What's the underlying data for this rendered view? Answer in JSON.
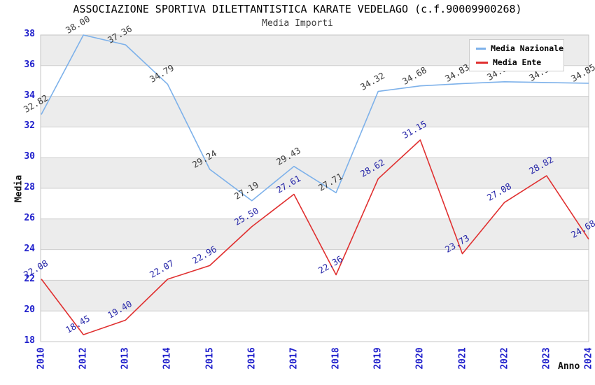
{
  "chart_data": {
    "type": "line",
    "title": "ASSOCIAZIONE SPORTIVA DILETTANTISTICA KARATE VEDELAGO (c.f.90009900268)",
    "subtitle": "Media Importi",
    "xlabel": "Anno",
    "ylabel": "Media",
    "categories": [
      "2010",
      "2012",
      "2013",
      "2014",
      "2015",
      "2016",
      "2017",
      "2018",
      "2019",
      "2020",
      "2021",
      "2022",
      "2023",
      "2024"
    ],
    "series": [
      {
        "name": "Media Nazionale",
        "color": "#7db1ea",
        "label_color": "#3a3a3a",
        "values": [
          32.82,
          38.0,
          37.36,
          34.79,
          29.24,
          27.19,
          29.43,
          27.71,
          34.32,
          34.68,
          34.83,
          34.95,
          34.9,
          34.85
        ]
      },
      {
        "name": "Media Ente",
        "color": "#e03030",
        "label_color": "#2525a8",
        "values": [
          22.08,
          18.45,
          19.4,
          22.07,
          22.96,
          25.5,
          27.61,
          22.36,
          28.62,
          31.15,
          23.73,
          27.08,
          28.82,
          24.68
        ]
      }
    ],
    "ylim": [
      18,
      38
    ],
    "ytick_step": 2,
    "grid": true,
    "band_color": "#ececec",
    "gridline_color": "#cfcfcf",
    "plot_border_color": "#c4c4c4",
    "tick_label_color": "#2020cc",
    "legend_position": "top-right"
  }
}
